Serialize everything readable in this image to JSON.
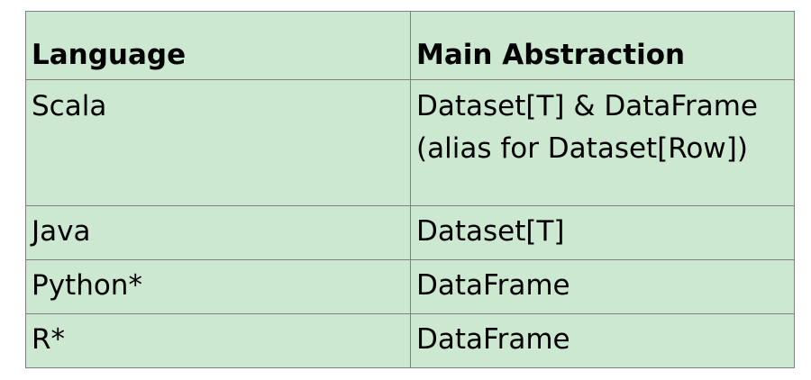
{
  "table": {
    "headers": [
      "Language",
      "Main Abstraction"
    ],
    "rows": [
      {
        "language": "Scala",
        "abstraction": "Dataset[T] & DataFrame\n(alias for Dataset[Row])"
      },
      {
        "language": "Java",
        "abstraction": "Dataset[T]"
      },
      {
        "language": "Python*",
        "abstraction": "DataFrame"
      },
      {
        "language": "R*",
        "abstraction": "DataFrame"
      }
    ]
  },
  "colors": {
    "cell_background": "#cce8d0",
    "border": "#7f7f7f"
  }
}
